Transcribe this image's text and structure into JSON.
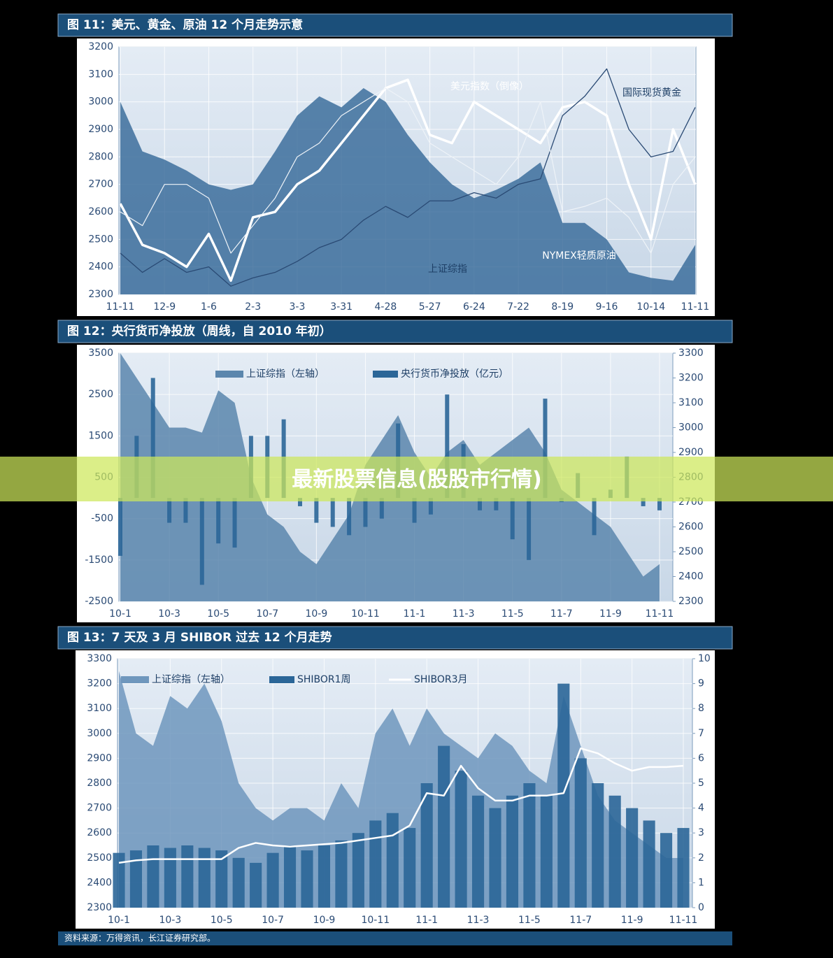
{
  "banner": "最新股票信息(股股市行情)",
  "source": "资料来源：万得资讯，长江证券研究部。",
  "chart_data": [
    {
      "type": "line",
      "title": "图 11：美元、黄金、原油 12 个月走势示意",
      "categories": [
        "11-11",
        null,
        "12-9",
        null,
        "1-6",
        null,
        "2-3",
        null,
        "3-3",
        null,
        "3-31",
        null,
        "4-28",
        null,
        "5-27",
        null,
        "6-24",
        null,
        "7-22",
        null,
        "8-19",
        null,
        "9-16",
        null,
        "10-14",
        null,
        "11-11"
      ],
      "ylim": [
        2300,
        3200
      ],
      "yticks": [
        2300,
        2400,
        2500,
        2600,
        2700,
        2800,
        2900,
        3000,
        3100,
        3200
      ],
      "grid": true,
      "legend": "inline",
      "series": [
        {
          "name": "上证综指",
          "color": "#3d6f9c",
          "kind": "area",
          "values": [
            3000,
            2820,
            2790,
            2750,
            2700,
            2680,
            2700,
            2820,
            2950,
            3020,
            2980,
            3050,
            3000,
            2880,
            2780,
            2700,
            2650,
            2680,
            2720,
            2780,
            2560,
            2560,
            2500,
            2380,
            2360,
            2350,
            2480
          ]
        },
        {
          "name": "美元指数（倒像）",
          "color": "#ffffff",
          "kind": "line",
          "values": [
            2630,
            2480,
            2450,
            2400,
            2520,
            2350,
            2580,
            2600,
            2700,
            2750,
            2850,
            2950,
            3050,
            3080,
            2880,
            2850,
            3000,
            2950,
            2900,
            2850,
            2980,
            3000,
            2950,
            2700,
            2500,
            2900,
            2700
          ]
        },
        {
          "name": "国际现货黄金",
          "color": "#2a4a74",
          "kind": "line",
          "values": [
            2450,
            2380,
            2430,
            2380,
            2400,
            2330,
            2360,
            2380,
            2420,
            2470,
            2500,
            2570,
            2620,
            2580,
            2640,
            2640,
            2670,
            2650,
            2700,
            2720,
            2950,
            3020,
            3120,
            2900,
            2800,
            2820,
            2980
          ]
        },
        {
          "name": "NYMEX轻质原油",
          "color": "#eef3f8",
          "kind": "line",
          "values": [
            2600,
            2550,
            2700,
            2700,
            2650,
            2450,
            2550,
            2650,
            2800,
            2850,
            2950,
            3000,
            3050,
            3000,
            2850,
            2800,
            2750,
            2700,
            2800,
            3000,
            2600,
            2620,
            2650,
            2580,
            2450,
            2700,
            2800
          ]
        }
      ]
    },
    {
      "type": "bar",
      "title": "图 12：央行货币净投放（周线，自 2010 年初）",
      "categories": [
        "10-1",
        null,
        null,
        "10-3",
        null,
        null,
        "10-5",
        null,
        null,
        "10-7",
        null,
        null,
        "10-9",
        null,
        null,
        "10-11",
        null,
        null,
        "11-1",
        null,
        null,
        "11-3",
        null,
        null,
        "11-5",
        null,
        null,
        "11-7",
        null,
        null,
        "11-9",
        null,
        null,
        "11-11"
      ],
      "ylim": [
        -2500,
        3500
      ],
      "yticks": [
        -2500,
        -1500,
        -500,
        500,
        1500,
        2500,
        3500
      ],
      "y2lim": [
        2300,
        3300
      ],
      "y2ticks": [
        2300,
        2400,
        2500,
        2600,
        2700,
        2800,
        2900,
        3000,
        3100,
        3200,
        3300
      ],
      "grid": true,
      "legend": "top",
      "series": [
        {
          "name": "上证综指（左轴）",
          "color": "#5b86ad",
          "kind": "area",
          "axis": "y2",
          "values": [
            3300,
            3200,
            3100,
            3000,
            3000,
            2980,
            3150,
            3100,
            2800,
            2650,
            2600,
            2500,
            2450,
            2550,
            2650,
            2850,
            2950,
            3050,
            2900,
            2800,
            2900,
            2950,
            2850,
            2900,
            2950,
            3000,
            2900,
            2750,
            2700,
            2650,
            2600,
            2500,
            2400,
            2450
          ]
        },
        {
          "name": "央行货币净投放（亿元）",
          "color": "#2b6698",
          "kind": "bar",
          "values": [
            -1400,
            1500,
            2900,
            -600,
            -600,
            -2100,
            -1100,
            -1200,
            1500,
            1500,
            1900,
            -200,
            -600,
            -700,
            -900,
            -700,
            -500,
            1800,
            -600,
            -400,
            2500,
            1300,
            -300,
            -300,
            -1000,
            -1500,
            2400,
            -100,
            600,
            -900,
            200,
            1000,
            -200,
            -300
          ]
        }
      ]
    },
    {
      "type": "bar",
      "title": "图 13：7 天及 3 月 SHIBOR 过去 12 个月走势",
      "categories": [
        "10-1",
        null,
        null,
        "10-3",
        null,
        null,
        "10-5",
        null,
        null,
        "10-7",
        null,
        null,
        "10-9",
        null,
        null,
        "10-11",
        null,
        null,
        "11-1",
        null,
        null,
        "11-3",
        null,
        null,
        "11-5",
        null,
        null,
        "11-7",
        null,
        null,
        "11-9",
        null,
        null,
        "11-11"
      ],
      "ylim": [
        2300,
        3300
      ],
      "yticks": [
        2300,
        2400,
        2500,
        2600,
        2700,
        2800,
        2900,
        3000,
        3100,
        3200,
        3300
      ],
      "y2lim": [
        0,
        10
      ],
      "y2ticks": [
        0,
        1,
        2,
        3,
        4,
        5,
        6,
        7,
        8,
        9,
        10
      ],
      "grid": true,
      "legend": "top",
      "series": [
        {
          "name": "上证综指（左轴）",
          "color": "#6f97bd",
          "kind": "area",
          "values": [
            3250,
            3000,
            2950,
            3150,
            3100,
            3200,
            3050,
            2800,
            2700,
            2650,
            2700,
            2700,
            2650,
            2800,
            2700,
            3000,
            3100,
            2950,
            3100,
            3000,
            2950,
            2900,
            3000,
            2950,
            2850,
            2800,
            3150,
            2950,
            2750,
            2650,
            2600,
            2550,
            2500,
            2500
          ]
        },
        {
          "name": "SHIBOR1周",
          "color": "#2b6698",
          "kind": "bar",
          "axis": "y2",
          "values": [
            2.2,
            2.3,
            2.5,
            2.4,
            2.5,
            2.4,
            2.3,
            2.0,
            1.8,
            2.2,
            2.5,
            2.3,
            2.5,
            2.7,
            3.0,
            3.5,
            3.8,
            3.2,
            5.0,
            6.5,
            5.5,
            4.5,
            4.0,
            4.5,
            5.0,
            4.5,
            9.0,
            6.0,
            5.0,
            4.5,
            4.0,
            3.5,
            3.0,
            3.2
          ]
        },
        {
          "name": "SHIBOR3月",
          "color": "#ffffff",
          "kind": "line",
          "axis": "y2",
          "values": [
            1.8,
            1.9,
            1.95,
            1.95,
            1.95,
            1.95,
            1.95,
            2.4,
            2.6,
            2.5,
            2.45,
            2.5,
            2.55,
            2.6,
            2.7,
            2.8,
            2.9,
            3.3,
            4.6,
            4.5,
            5.7,
            4.8,
            4.3,
            4.3,
            4.5,
            4.5,
            4.6,
            6.4,
            6.2,
            5.8,
            5.5,
            5.65,
            5.65,
            5.7
          ]
        }
      ]
    }
  ]
}
